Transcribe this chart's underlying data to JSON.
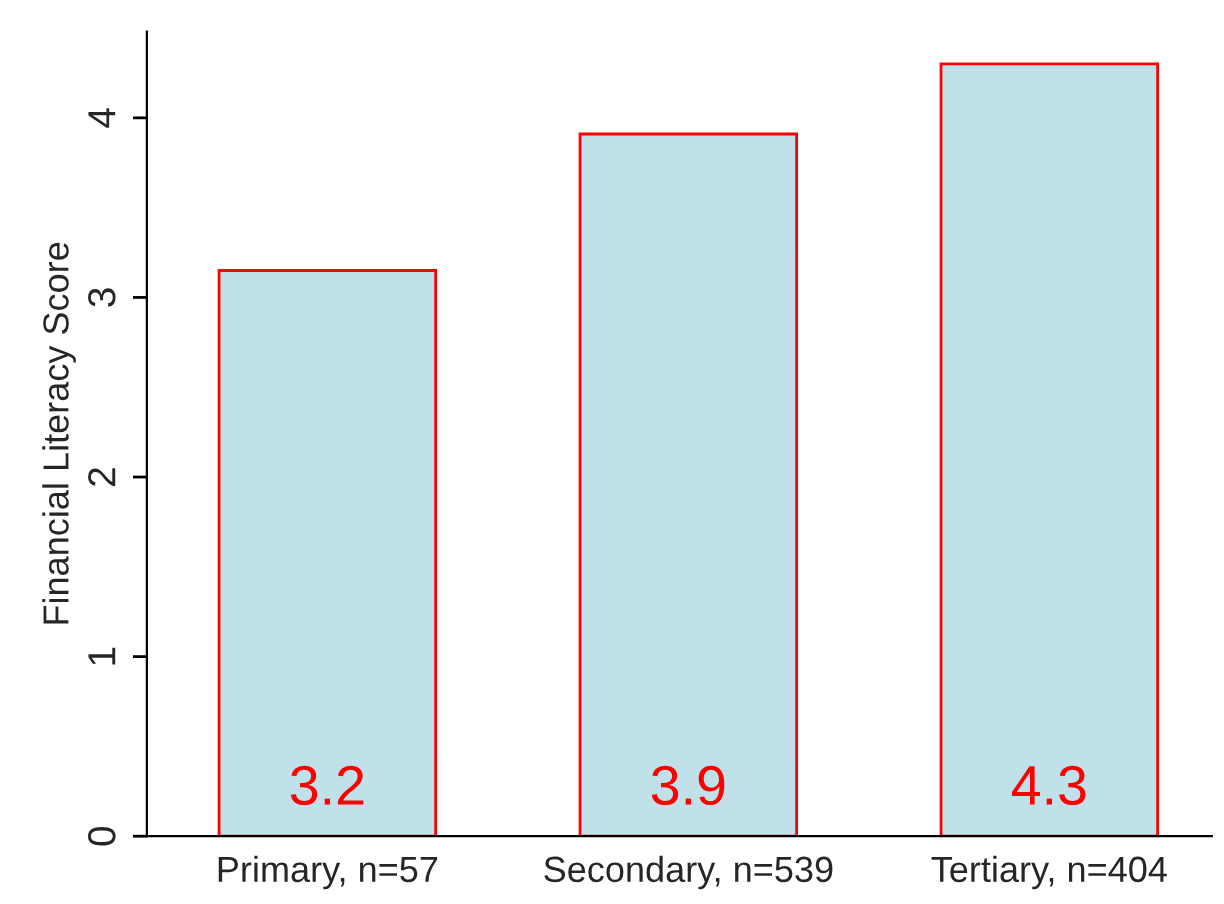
{
  "chart_data": {
    "type": "bar",
    "ylabel": "Financial Literacy Score",
    "categories": [
      "Primary, n=57",
      "Secondary, n=539",
      "Tertiary, n=404"
    ],
    "values": [
      3.15,
      3.91,
      4.3
    ],
    "value_labels": [
      "3.2",
      "3.9",
      "4.3"
    ],
    "color": "#c0e0ea",
    "ylim": [
      0,
      4.48
    ],
    "yticks": [
      0,
      1,
      2,
      3,
      4
    ],
    "grid": false,
    "legend": false
  }
}
